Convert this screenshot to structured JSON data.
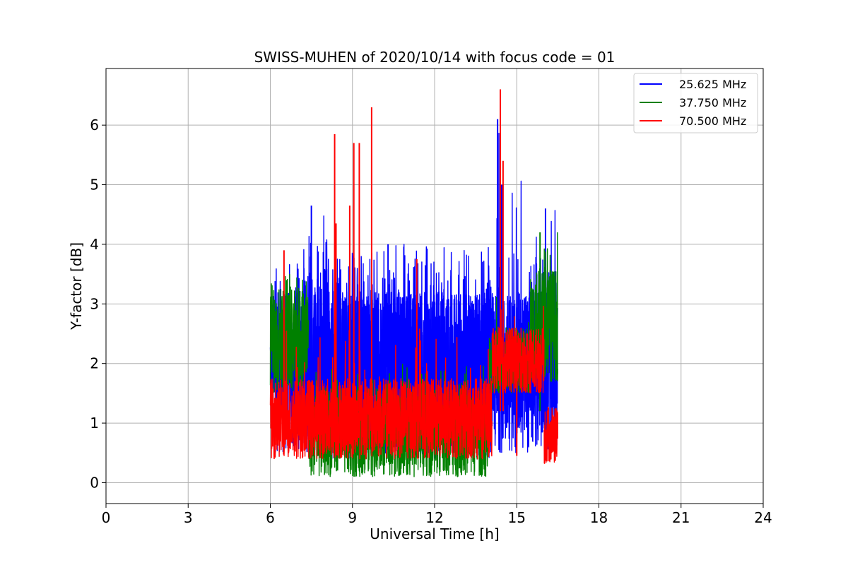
{
  "chart_data": {
    "type": "line",
    "title": "SWISS-MUHEN of 2020/10/14 with focus code = 01",
    "xlabel": "Universal Time [h]",
    "ylabel": "Y-factor [dB]",
    "xlim": [
      0,
      24
    ],
    "ylim": [
      -0.35,
      6.95
    ],
    "xticks": [
      0,
      3,
      6,
      9,
      12,
      15,
      18,
      21,
      24
    ],
    "yticks": [
      0,
      1,
      2,
      3,
      4,
      5,
      6
    ],
    "grid": true,
    "legend_position": "top-right",
    "series": [
      {
        "name": "25.625 MHz",
        "color": "#0000ff",
        "segments": [
          {
            "t": [
              6.0,
              16.5
            ],
            "lo": 0.5,
            "hi": 3.2,
            "spikeMax": 3.9,
            "spikeRate": 0.04
          },
          {
            "t": [
              7.0,
              8.2
            ],
            "lo": 0.6,
            "hi": 3.6,
            "spikeMax": 4.6,
            "spikeRate": 0.05
          },
          {
            "t": [
              8.2,
              14.0
            ],
            "lo": 0.4,
            "hi": 3.2,
            "spikeMax": 4.0,
            "spikeRate": 0.04
          },
          {
            "t": [
              14.0,
              15.3
            ],
            "lo": 1.2,
            "hi": 2.6,
            "spikeMax": 6.1,
            "spikeRate": 0.02
          },
          {
            "t": [
              15.3,
              16.5
            ],
            "lo": 1.2,
            "hi": 3.4,
            "spikeMax": 4.6,
            "spikeRate": 0.04
          }
        ],
        "peaks": [
          [
            14.3,
            6.1
          ],
          [
            16.05,
            4.6
          ],
          [
            7.5,
            4.65
          ],
          [
            14.45,
            5.0
          ],
          [
            10.3,
            4.0
          ]
        ]
      },
      {
        "name": "37.750 MHz",
        "color": "#008000",
        "segments": [
          {
            "t": [
              6.0,
              7.4
            ],
            "lo": 1.5,
            "hi": 3.3,
            "spikeMax": 3.5,
            "spikeRate": 0.03
          },
          {
            "t": [
              7.4,
              14.0
            ],
            "lo": 0.1,
            "hi": 1.6,
            "spikeMax": 2.0,
            "spikeRate": 0.02
          },
          {
            "t": [
              14.0,
              15.5
            ],
            "lo": 1.5,
            "hi": 2.6,
            "spikeMax": 3.2,
            "spikeRate": 0.03
          },
          {
            "t": [
              15.5,
              16.5
            ],
            "lo": 1.7,
            "hi": 3.6,
            "spikeMax": 4.2,
            "spikeRate": 0.05
          }
        ],
        "peaks": [
          [
            15.85,
            4.2
          ]
        ]
      },
      {
        "name": "70.500 MHz",
        "color": "#ff0000",
        "segments": [
          {
            "t": [
              6.0,
              14.1
            ],
            "lo": 0.4,
            "hi": 1.75,
            "spikeMax": 2.6,
            "spikeRate": 0.02
          },
          {
            "t": [
              14.1,
              16.0
            ],
            "lo": 1.5,
            "hi": 2.6,
            "spikeMax": 3.0,
            "spikeRate": 0.02
          },
          {
            "t": [
              16.0,
              16.5
            ],
            "lo": 0.3,
            "hi": 1.3,
            "spikeMax": 1.5,
            "spikeRate": 0.02
          }
        ],
        "peaks": [
          [
            6.5,
            3.9
          ],
          [
            8.35,
            5.85
          ],
          [
            8.4,
            4.35
          ],
          [
            8.9,
            4.65
          ],
          [
            9.05,
            5.7
          ],
          [
            9.25,
            5.7
          ],
          [
            9.7,
            6.3
          ],
          [
            11.35,
            3.75
          ],
          [
            14.4,
            6.6
          ],
          [
            14.5,
            5.4
          ],
          [
            15.0,
            0.45
          ]
        ]
      }
    ]
  }
}
